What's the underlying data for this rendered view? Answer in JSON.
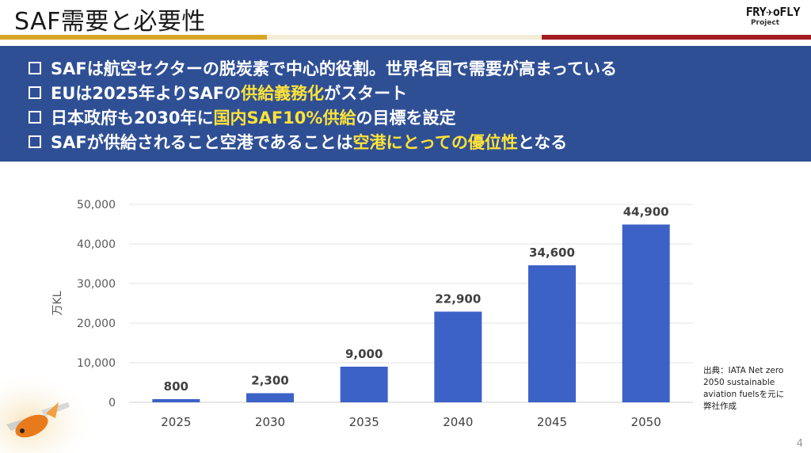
{
  "header": {
    "title": "SAF需要と必要性",
    "logo_main": "FRY✈oFLY",
    "logo_sub": "Project"
  },
  "colors": {
    "banner_bg": "#2f4f95",
    "highlight": "#ffe338",
    "bar": "#3d62c7",
    "band_gold": "#d7a626",
    "band_red": "#a51d24"
  },
  "bullets": [
    {
      "segments": [
        {
          "text": "SAFは航空セクターの脱炭素で中心的役割。世界各国で需要が高まっている",
          "highlight": false
        }
      ]
    },
    {
      "segments": [
        {
          "text": "EUは2025年よりSAFの",
          "highlight": false
        },
        {
          "text": "供給義務化",
          "highlight": true
        },
        {
          "text": "がスタート",
          "highlight": false
        }
      ]
    },
    {
      "segments": [
        {
          "text": "日本政府も2030年に",
          "highlight": false
        },
        {
          "text": "国内SAF10%供給",
          "highlight": true
        },
        {
          "text": "の目標を設定",
          "highlight": false
        }
      ]
    },
    {
      "segments": [
        {
          "text": "SAFが供給されること空港であることは",
          "highlight": false
        },
        {
          "text": "空港にとっての優位性",
          "highlight": true
        },
        {
          "text": "となる",
          "highlight": false
        }
      ]
    }
  ],
  "chart_data": {
    "type": "bar",
    "title": "",
    "xlabel": "",
    "ylabel": "万KL",
    "categories": [
      "2025",
      "2030",
      "2035",
      "2040",
      "2045",
      "2050"
    ],
    "values": [
      800,
      2300,
      9000,
      22900,
      34600,
      44900
    ],
    "value_labels": [
      "800",
      "2,300",
      "9,000",
      "22,900",
      "34,600",
      "44,900"
    ],
    "ylim": [
      0,
      50000
    ],
    "yticks": [
      0,
      10000,
      20000,
      30000,
      40000,
      50000
    ],
    "ytick_labels": [
      "0",
      "10,000",
      "20,000",
      "30,000",
      "40,000",
      "50,000"
    ],
    "grid": true,
    "legend": "none"
  },
  "source": {
    "lines": [
      "出典：IATA Net zero",
      "2050 sustainable",
      "aviation fuelsを元に",
      "弊社作成"
    ]
  },
  "page_number": "4"
}
